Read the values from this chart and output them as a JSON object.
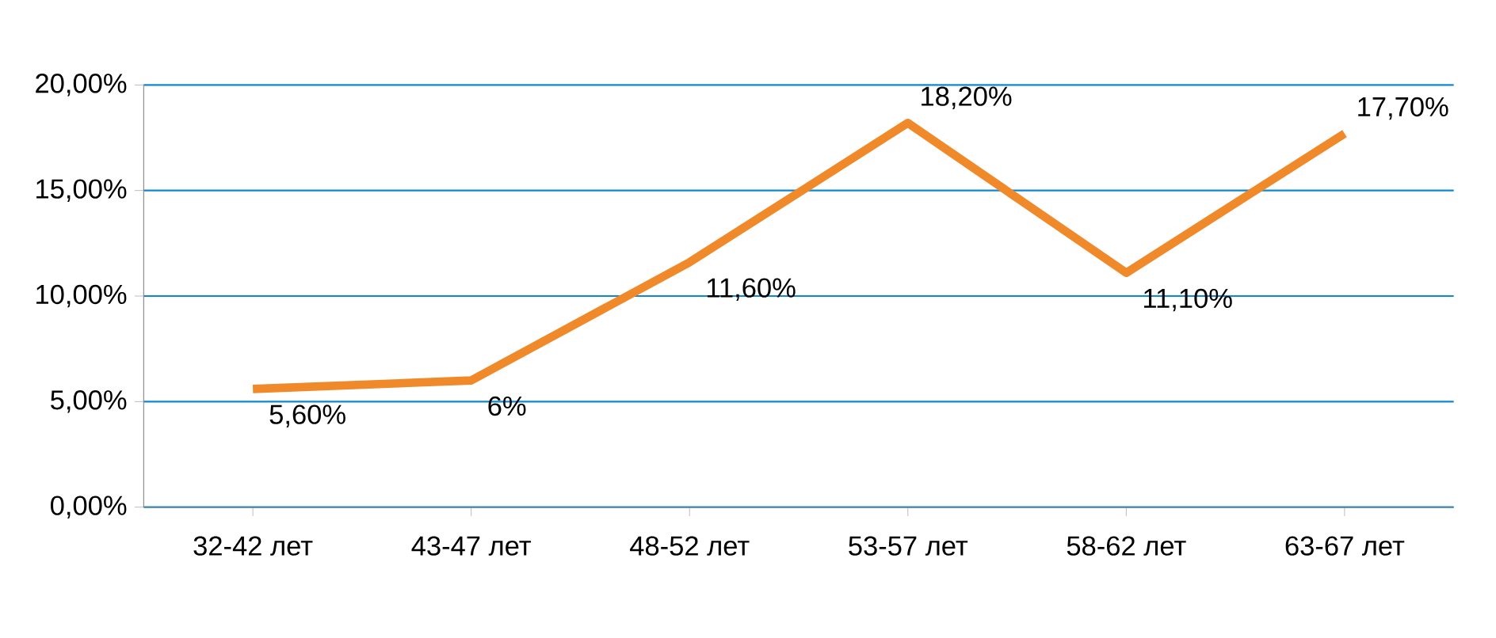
{
  "chart_data": {
    "type": "line",
    "categories": [
      "32-42 лет",
      "43-47 лет",
      "48-52 лет",
      "53-57 лет",
      "58-62 лет",
      "63-67 лет"
    ],
    "series": [
      {
        "color": "#f0892a",
        "values": [
          5.6,
          6,
          11.6,
          18.2,
          11.1,
          17.7
        ],
        "value_labels": [
          "5,60%",
          "6%",
          "11,60%",
          "18,20%",
          "11,10%",
          "17,70%"
        ]
      }
    ],
    "ylim": [
      0,
      20
    ],
    "yticks": [
      {
        "value": 0,
        "label": "0,00%"
      },
      {
        "value": 5,
        "label": "5,00%"
      },
      {
        "value": 10,
        "label": "10,00%"
      },
      {
        "value": 15,
        "label": "15,00%"
      },
      {
        "value": 20,
        "label": "20,00%"
      }
    ],
    "grid": "y",
    "marker": "none",
    "line_style": "solid"
  }
}
